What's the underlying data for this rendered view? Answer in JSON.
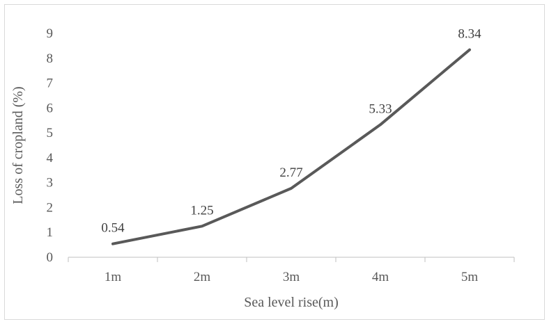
{
  "chart_data": {
    "type": "line",
    "categories": [
      "1m",
      "2m",
      "3m",
      "4m",
      "5m"
    ],
    "series": [
      {
        "values": [
          0.54,
          1.25,
          2.77,
          5.33,
          8.34
        ]
      }
    ],
    "data_labels": [
      "0.54",
      "1.25",
      "2.77",
      "5.33",
      "8.34"
    ],
    "y_ticks": [
      "0",
      "1",
      "2",
      "3",
      "4",
      "5",
      "6",
      "7",
      "8",
      "9"
    ],
    "xlabel": "Sea level rise(m)",
    "ylabel": "Loss of cropland (%)",
    "ylim": [
      0,
      9
    ],
    "grid": false,
    "legend": "none",
    "line_color": "#595959",
    "axis_color": "#bfbfbf"
  }
}
